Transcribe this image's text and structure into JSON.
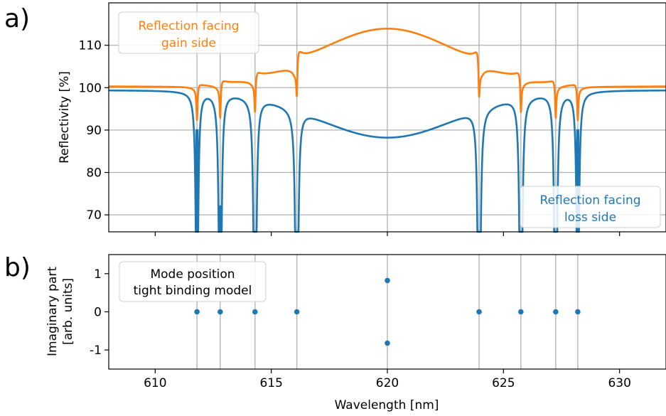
{
  "panel_labels": [
    "a)",
    "b)"
  ],
  "colors": {
    "gain": "#ff7f0e",
    "loss": "#1f77b4",
    "grid": "#b0b0b0",
    "axis": "#000000"
  },
  "chart_data": [
    {
      "type": "line",
      "panel": "a)",
      "xlabel": "",
      "ylabel": "Reflectivity [%]",
      "xlim": [
        608,
        632
      ],
      "ylim": [
        66,
        120
      ],
      "yticks": [
        70,
        80,
        90,
        100,
        110
      ],
      "ytick_labels": [
        "70",
        "80",
        "90",
        "100",
        "110"
      ],
      "grid": true,
      "grid_x": [
        611.8,
        612.8,
        614.3,
        616.1,
        620.0,
        623.95,
        625.75,
        627.25,
        628.2
      ],
      "resonances": [
        {
          "x": 611.8,
          "dip_loss": 90.0,
          "bump": 1.3
        },
        {
          "x": 612.8,
          "dip_loss": 72.0,
          "bump": 2.0
        },
        {
          "x": 614.3,
          "dip_loss": 66.0,
          "bump": 3.0
        },
        {
          "x": 616.1,
          "dip_loss": 66.0,
          "bump": 5.3
        },
        {
          "x": 623.95,
          "dip_loss": 66.0,
          "bump": 5.3
        },
        {
          "x": 625.75,
          "dip_loss": 66.0,
          "bump": 3.0
        },
        {
          "x": 627.25,
          "dip_loss": 66.0,
          "bump": 2.0
        },
        {
          "x": 628.2,
          "dip_loss": 90.0,
          "bump": 1.3
        }
      ],
      "center": {
        "x": 620.0,
        "gain_peak": 113.5,
        "loss_min": 88.2
      },
      "series": [
        {
          "name": "Reflection facing\ngain side",
          "color": "#ff7f0e"
        },
        {
          "name": "Reflection facing\nloss side",
          "color": "#1f77b4"
        }
      ],
      "annotations": {
        "gain_text": [
          "Reflection facing",
          "gain side"
        ],
        "loss_text": [
          "Reflection facing",
          "loss side"
        ]
      }
    },
    {
      "type": "scatter",
      "panel": "b)",
      "xlabel": "Wavelength [nm]",
      "ylabel_lines": [
        "Imaginary part",
        "[arb. units]"
      ],
      "xlim": [
        608,
        632
      ],
      "ylim": [
        -1.5,
        1.5
      ],
      "xticks": [
        610,
        615,
        620,
        625,
        630
      ],
      "xtick_labels": [
        "610",
        "615",
        "620",
        "625",
        "630"
      ],
      "yticks": [
        1,
        0,
        -1
      ],
      "ytick_labels": [
        "1",
        "0",
        "-1"
      ],
      "grid": true,
      "points": [
        {
          "x": 611.8,
          "y": 0
        },
        {
          "x": 612.8,
          "y": 0
        },
        {
          "x": 614.3,
          "y": 0
        },
        {
          "x": 616.1,
          "y": 0
        },
        {
          "x": 620.0,
          "y": 0.82
        },
        {
          "x": 620.0,
          "y": -0.82
        },
        {
          "x": 623.95,
          "y": 0
        },
        {
          "x": 625.75,
          "y": 0
        },
        {
          "x": 627.25,
          "y": 0
        },
        {
          "x": 628.2,
          "y": 0
        }
      ],
      "legend_text": [
        "Mode position",
        "tight binding model"
      ],
      "color": "#1f77b4"
    }
  ]
}
